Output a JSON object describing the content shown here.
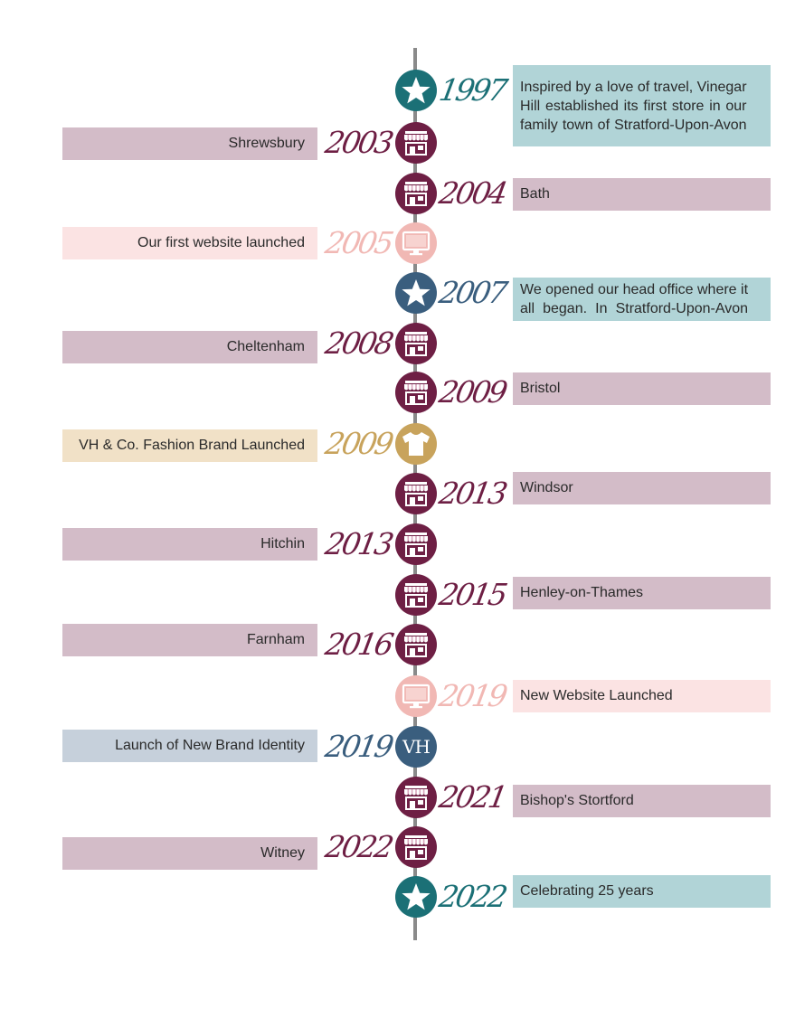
{
  "colors": {
    "axis": "#8a8a8a",
    "store": "#6e1f44",
    "star_teal": "#1b7076",
    "star_blue": "#3a5e7e",
    "web_pink": "#f1b8b4",
    "fashion_gold": "#c8a35c",
    "box_mauve": "#d3bcc8",
    "box_teal": "#b1d4d7",
    "box_pink": "#fbe3e3",
    "box_sand": "#f1e1c7",
    "box_blue": "#c6d0db"
  },
  "events": [
    {
      "year": "1997",
      "side": "right",
      "icon": "star-icon",
      "icon_color": "#1b7076",
      "box_color": "#b1d4d7",
      "lines": [
        "Inspired by a love of travel, Vinegar",
        "Hill established its first store in our",
        "family town of Stratford-Upon-Avon"
      ]
    },
    {
      "year": "2003",
      "side": "left",
      "icon": "store-icon",
      "icon_color": "#6e1f44",
      "box_color": "#d3bcc8",
      "lines": [
        "Shrewsbury"
      ]
    },
    {
      "year": "2004",
      "side": "right",
      "icon": "store-icon",
      "icon_color": "#6e1f44",
      "box_color": "#d3bcc8",
      "lines": [
        "Bath"
      ]
    },
    {
      "year": "2005",
      "side": "left",
      "icon": "monitor-icon",
      "icon_color": "#f1b8b4",
      "box_color": "#fbe3e3",
      "lines": [
        "Our first website launched"
      ]
    },
    {
      "year": "2007",
      "side": "right",
      "icon": "star-icon",
      "icon_color": "#3a5e7e",
      "box_color": "#b1d4d7",
      "lines": [
        "We opened our head office where it",
        "all  began.  In  Stratford-Upon-Avon"
      ]
    },
    {
      "year": "2008",
      "side": "left",
      "icon": "store-icon",
      "icon_color": "#6e1f44",
      "box_color": "#d3bcc8",
      "lines": [
        "Cheltenham"
      ]
    },
    {
      "year": "2009",
      "side": "right",
      "icon": "store-icon",
      "icon_color": "#6e1f44",
      "box_color": "#d3bcc8",
      "lines": [
        "Bristol"
      ]
    },
    {
      "year": "2009",
      "side": "left",
      "icon": "tshirt-icon",
      "icon_color": "#c8a35c",
      "box_color": "#f1e1c7",
      "lines": [
        "VH & Co. Fashion Brand Launched"
      ]
    },
    {
      "year": "2013",
      "side": "right",
      "icon": "store-icon",
      "icon_color": "#6e1f44",
      "box_color": "#d3bcc8",
      "lines": [
        "Windsor"
      ]
    },
    {
      "year": "2013",
      "side": "left",
      "icon": "store-icon",
      "icon_color": "#6e1f44",
      "box_color": "#d3bcc8",
      "lines": [
        "Hitchin"
      ]
    },
    {
      "year": "2015",
      "side": "right",
      "icon": "store-icon",
      "icon_color": "#6e1f44",
      "box_color": "#d3bcc8",
      "lines": [
        "Henley-on-Thames"
      ]
    },
    {
      "year": "2016",
      "side": "left",
      "icon": "store-icon",
      "icon_color": "#6e1f44",
      "box_color": "#d3bcc8",
      "lines": [
        "Farnham"
      ]
    },
    {
      "year": "2019",
      "side": "right",
      "icon": "monitor-icon",
      "icon_color": "#f1b8b4",
      "box_color": "#fbe3e3",
      "lines": [
        "New Website Launched"
      ]
    },
    {
      "year": "2019",
      "side": "left",
      "icon": "vh-monogram-icon",
      "icon_color": "#3a5e7e",
      "box_color": "#c6d0db",
      "icon_text": "VH",
      "lines": [
        "Launch of New Brand Identity"
      ]
    },
    {
      "year": "2021",
      "side": "right",
      "icon": "store-icon",
      "icon_color": "#6e1f44",
      "box_color": "#d3bcc8",
      "lines": [
        "Bishop's Stortford"
      ]
    },
    {
      "year": "2022",
      "side": "left",
      "icon": "store-icon",
      "icon_color": "#6e1f44",
      "box_color": "#d3bcc8",
      "lines": [
        "Witney"
      ]
    },
    {
      "year": "2022",
      "side": "right",
      "icon": "star-icon",
      "icon_color": "#1b7076",
      "box_color": "#b1d4d7",
      "lines": [
        "Celebrating 25  years"
      ]
    }
  ]
}
